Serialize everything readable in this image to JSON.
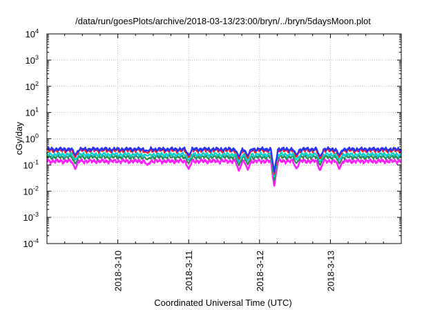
{
  "chart_data": {
    "type": "line",
    "title": "/data/run/goesPlots/archive/2018-03-13/23:00/bryn/../bryn/5daysMoon.plot",
    "xlabel": "Coordinated Universal Time (UTC)",
    "ylabel": "cGy/day",
    "yscale": "log",
    "ylim": [
      0.0001,
      10000
    ],
    "ytick_exponents": [
      -4,
      -3,
      -2,
      -1,
      0,
      1,
      2,
      3,
      4
    ],
    "x_start": "2018-03-09 00:00",
    "x_end": "2018-03-14 00:00",
    "xticks": [
      "2018-3-10",
      "2018-3-11",
      "2018-3-12",
      "2018-3-13"
    ],
    "grid": true,
    "legend": "none",
    "series": [
      {
        "color": "#2233ff",
        "base": 0.4
      },
      {
        "color": "#ff2020",
        "base": 0.36
      },
      {
        "color": "#00cfd0",
        "base": 0.25
      },
      {
        "color": "#2e8b57",
        "base": 0.2
      },
      {
        "color": "#ff20ff",
        "base": 0.14
      }
    ],
    "dips": [
      {
        "time": "2018-03-09 09:36",
        "depth": 0.07
      },
      {
        "time": "2018-03-10 10:00",
        "depth": 0.1
      },
      {
        "time": "2018-03-11 00:00",
        "depth": 0.07
      },
      {
        "time": "2018-03-11 17:00",
        "depth": 0.06
      },
      {
        "time": "2018-03-11 20:00",
        "depth": 0.065
      },
      {
        "time": "2018-03-12 05:00",
        "depth": 0.016
      },
      {
        "time": "2018-03-12 12:30",
        "depth": 0.07
      },
      {
        "time": "2018-03-12 20:30",
        "depth": 0.06
      },
      {
        "time": "2018-03-13 03:00",
        "depth": 0.07
      }
    ]
  }
}
